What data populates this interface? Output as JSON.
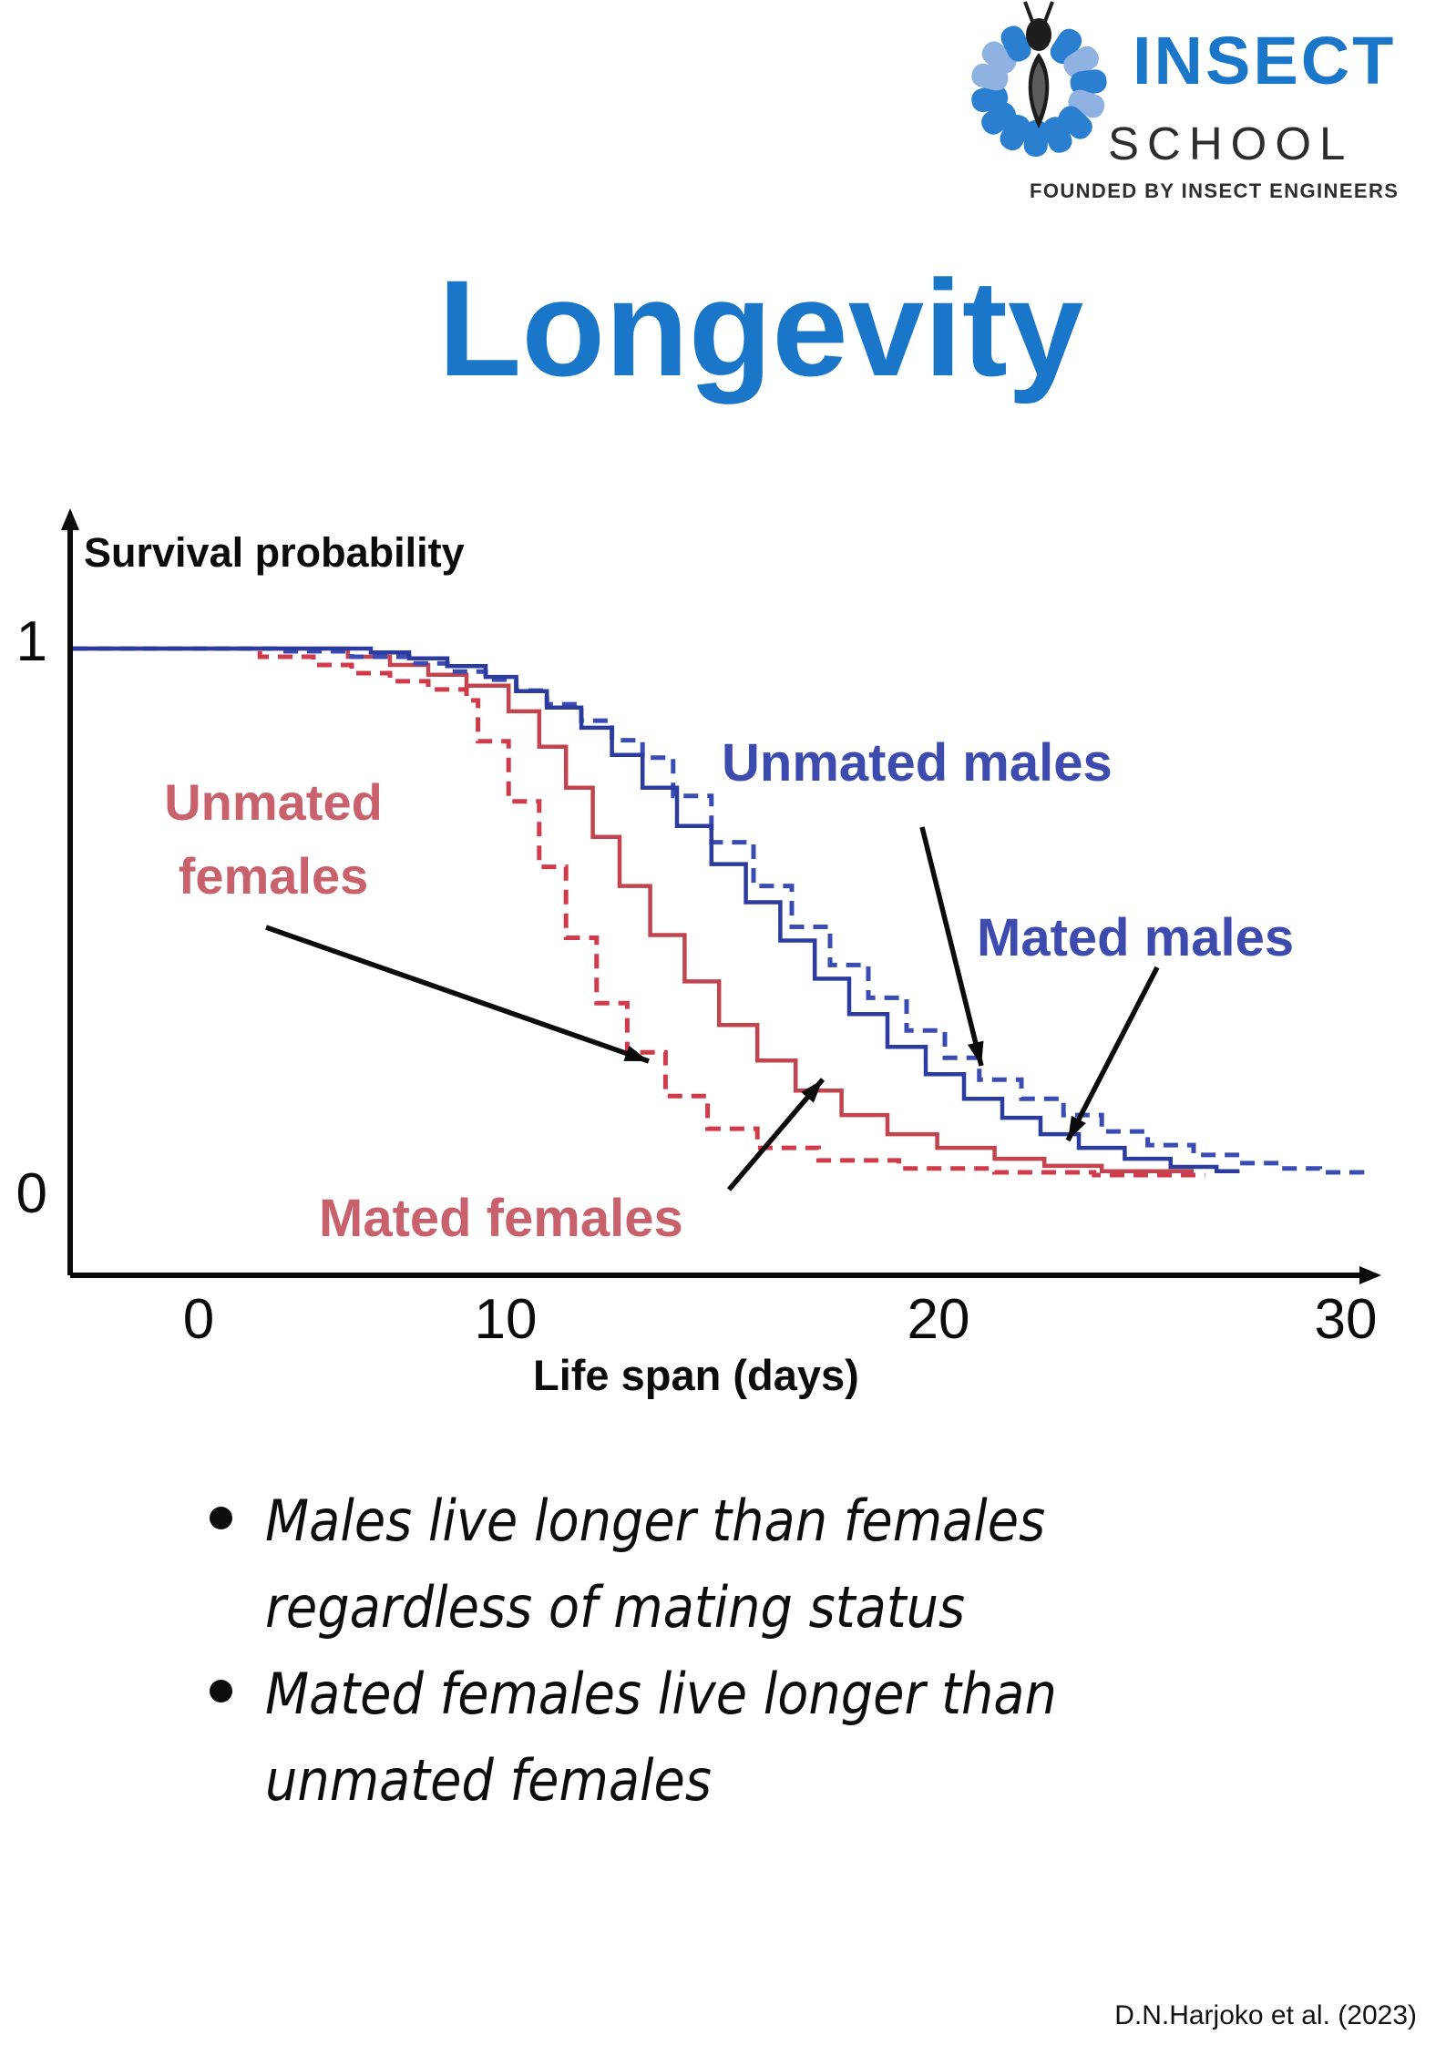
{
  "logo": {
    "brand_top": "INSECT",
    "brand_bottom": "SCHOOL",
    "tagline": "FOUNDED BY INSECT ENGINEERS",
    "colors": {
      "petal_main": "#2b7fd0",
      "petal_light": "#8fb2e3",
      "body_dark": "#1d1d1d",
      "body_inner": "#5c5c5c",
      "brand_blue": "#1a76c9",
      "brand_dark": "#2d2d2d"
    }
  },
  "title": {
    "text": "Longevity",
    "color": "#1a76c9"
  },
  "chart_data": {
    "type": "line",
    "subtype": "kaplan-meier-survival-steps",
    "title": "",
    "xlabel": "Life span (days)",
    "ylabel": "Survival probability",
    "x_tick_labels": [
      "0",
      "10",
      "20",
      "30"
    ],
    "y_tick_top": "1",
    "y_tick_bottom": "0",
    "xlim": [
      0,
      31
    ],
    "ylim": [
      0,
      1
    ],
    "grid": false,
    "legend_position": "inline-annotations",
    "series": [
      {
        "name": "Unmated females",
        "style": "dashed",
        "color": "#d03a4b",
        "steps": [
          [
            0,
            1
          ],
          [
            1.6,
            0.985
          ],
          [
            3,
            0.97
          ],
          [
            4,
            0.955
          ],
          [
            5,
            0.94
          ],
          [
            6,
            0.925
          ],
          [
            7,
            0.905
          ],
          [
            7.3,
            0.83
          ],
          [
            8.1,
            0.72
          ],
          [
            8.9,
            0.6
          ],
          [
            9.6,
            0.47
          ],
          [
            10.4,
            0.35
          ],
          [
            11.2,
            0.26
          ],
          [
            12.2,
            0.18
          ],
          [
            13.3,
            0.12
          ],
          [
            14.6,
            0.085
          ],
          [
            16.2,
            0.062
          ],
          [
            18.3,
            0.047
          ],
          [
            20.8,
            0.04
          ],
          [
            23.4,
            0.035
          ],
          [
            26.3,
            0.035
          ]
        ]
      },
      {
        "name": "Mated females",
        "style": "solid",
        "color": "#c1444e",
        "steps": [
          [
            0,
            1
          ],
          [
            3.9,
            0.985
          ],
          [
            5,
            0.97
          ],
          [
            6,
            0.952
          ],
          [
            7,
            0.932
          ],
          [
            8.1,
            0.885
          ],
          [
            8.9,
            0.82
          ],
          [
            9.6,
            0.745
          ],
          [
            10.3,
            0.655
          ],
          [
            11,
            0.565
          ],
          [
            11.8,
            0.475
          ],
          [
            12.7,
            0.39
          ],
          [
            13.6,
            0.31
          ],
          [
            14.6,
            0.245
          ],
          [
            15.6,
            0.19
          ],
          [
            16.8,
            0.145
          ],
          [
            18,
            0.11
          ],
          [
            19.3,
            0.085
          ],
          [
            20.8,
            0.065
          ],
          [
            22.1,
            0.052
          ],
          [
            23.6,
            0.042
          ],
          [
            26,
            0.042
          ]
        ]
      },
      {
        "name": "Unmated males",
        "style": "dashed",
        "color": "#3a4cb4",
        "steps": [
          [
            0,
            1
          ],
          [
            2,
            0.995
          ],
          [
            4,
            0.985
          ],
          [
            5.5,
            0.973
          ],
          [
            6.5,
            0.958
          ],
          [
            7.5,
            0.943
          ],
          [
            8.3,
            0.923
          ],
          [
            9.1,
            0.898
          ],
          [
            10,
            0.868
          ],
          [
            10.8,
            0.832
          ],
          [
            11.6,
            0.8
          ],
          [
            12.4,
            0.73
          ],
          [
            13.4,
            0.645
          ],
          [
            14.5,
            0.565
          ],
          [
            15.5,
            0.49
          ],
          [
            16.5,
            0.42
          ],
          [
            17.5,
            0.36
          ],
          [
            18.5,
            0.3
          ],
          [
            19.5,
            0.25
          ],
          [
            20.4,
            0.21
          ],
          [
            21.5,
            0.175
          ],
          [
            22.6,
            0.145
          ],
          [
            23.6,
            0.115
          ],
          [
            24.8,
            0.09
          ],
          [
            26,
            0.072
          ],
          [
            27.2,
            0.057
          ],
          [
            28.3,
            0.047
          ],
          [
            29.3,
            0.04
          ],
          [
            30.4,
            0.033
          ]
        ]
      },
      {
        "name": "Mated males",
        "style": "solid",
        "color": "#2c3b9e",
        "steps": [
          [
            0,
            1
          ],
          [
            4.5,
            0.993
          ],
          [
            5.5,
            0.982
          ],
          [
            6.5,
            0.968
          ],
          [
            7.5,
            0.948
          ],
          [
            8.3,
            0.922
          ],
          [
            9.1,
            0.892
          ],
          [
            10,
            0.855
          ],
          [
            10.8,
            0.805
          ],
          [
            11.6,
            0.745
          ],
          [
            12.5,
            0.675
          ],
          [
            13.4,
            0.605
          ],
          [
            14.3,
            0.535
          ],
          [
            15.2,
            0.465
          ],
          [
            16.1,
            0.395
          ],
          [
            17,
            0.33
          ],
          [
            18,
            0.27
          ],
          [
            19,
            0.22
          ],
          [
            20,
            0.175
          ],
          [
            21,
            0.14
          ],
          [
            22,
            0.11
          ],
          [
            23,
            0.085
          ],
          [
            24.2,
            0.065
          ],
          [
            25.4,
            0.05
          ],
          [
            26.6,
            0.042
          ],
          [
            27.2,
            0.042
          ]
        ]
      }
    ],
    "annotations": [
      {
        "text": "Unmated females",
        "lines": [
          "Unmated",
          "females"
        ],
        "series": "Unmated females",
        "color": "#c9616d"
      },
      {
        "text": "Unmated males",
        "series": "Unmated males",
        "color": "#3e4bae"
      },
      {
        "text": "Mated males",
        "series": "Mated males",
        "color": "#3e4bae"
      },
      {
        "text": "Mated females",
        "series": "Mated females",
        "color": "#c9616d"
      }
    ]
  },
  "bullets": [
    {
      "lines": [
        "Males live longer than females",
        "regardless of mating status"
      ]
    },
    {
      "lines": [
        "Mated females live longer than",
        "unmated females"
      ]
    }
  ],
  "citation": "D.N.Harjoko et al. (2023)"
}
